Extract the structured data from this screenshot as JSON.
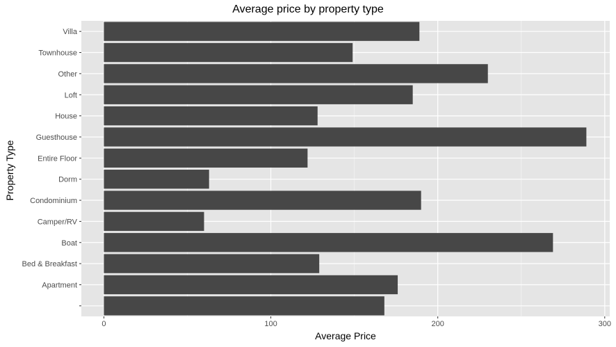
{
  "chart_data": {
    "type": "bar",
    "orientation": "horizontal",
    "title": "Average price by property type",
    "xlabel": "Average Price",
    "ylabel": "Property Type",
    "categories": [
      "",
      "Apartment",
      "Bed & Breakfast",
      "Boat",
      "Camper/RV",
      "Condominium",
      "Dorm",
      "Entire Floor",
      "Guesthouse",
      "House",
      "Loft",
      "Other",
      "Townhouse",
      "Villa"
    ],
    "values": [
      168,
      176,
      129,
      269,
      60,
      190,
      63,
      122,
      289,
      128,
      185,
      230,
      149,
      189
    ],
    "xlim": [
      -13.5,
      303
    ],
    "x_ticks": [
      0,
      100,
      200,
      300
    ],
    "x_tick_labels": [
      "0",
      "100",
      "200",
      "300"
    ],
    "grid": true,
    "colors": {
      "panel_background": "#e5e5e5",
      "grid_major": "#ffffff",
      "grid_minor": "#f2f2f2",
      "bar": "#474747",
      "tick_text": "#4d4d4d",
      "tick_mark": "#333333"
    }
  }
}
